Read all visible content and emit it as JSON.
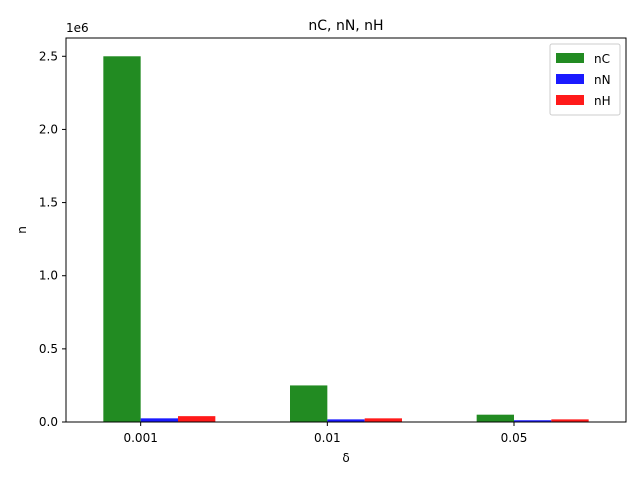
{
  "chart_data": {
    "type": "bar",
    "title": "nC, nN, nH",
    "xlabel": "δ",
    "ylabel": "n",
    "offset_label": "1e6",
    "categories": [
      "0.001",
      "0.01",
      "0.05"
    ],
    "series": [
      {
        "name": "nC",
        "color": "#228b22",
        "values": [
          2500000,
          250000,
          50000
        ]
      },
      {
        "name": "nN",
        "color": "#1a1aff",
        "values": [
          25000,
          18000,
          12000
        ]
      },
      {
        "name": "nH",
        "color": "#ff1a1a",
        "values": [
          40000,
          25000,
          18000
        ]
      }
    ],
    "ylim": [
      0,
      2625000
    ],
    "yticks": [
      0,
      500000,
      1000000,
      1500000,
      2000000,
      2500000
    ],
    "ytick_labels": [
      "0.0",
      "0.5",
      "1.0",
      "1.5",
      "2.0",
      "2.5"
    ],
    "legend": "top-right",
    "grid": false
  }
}
